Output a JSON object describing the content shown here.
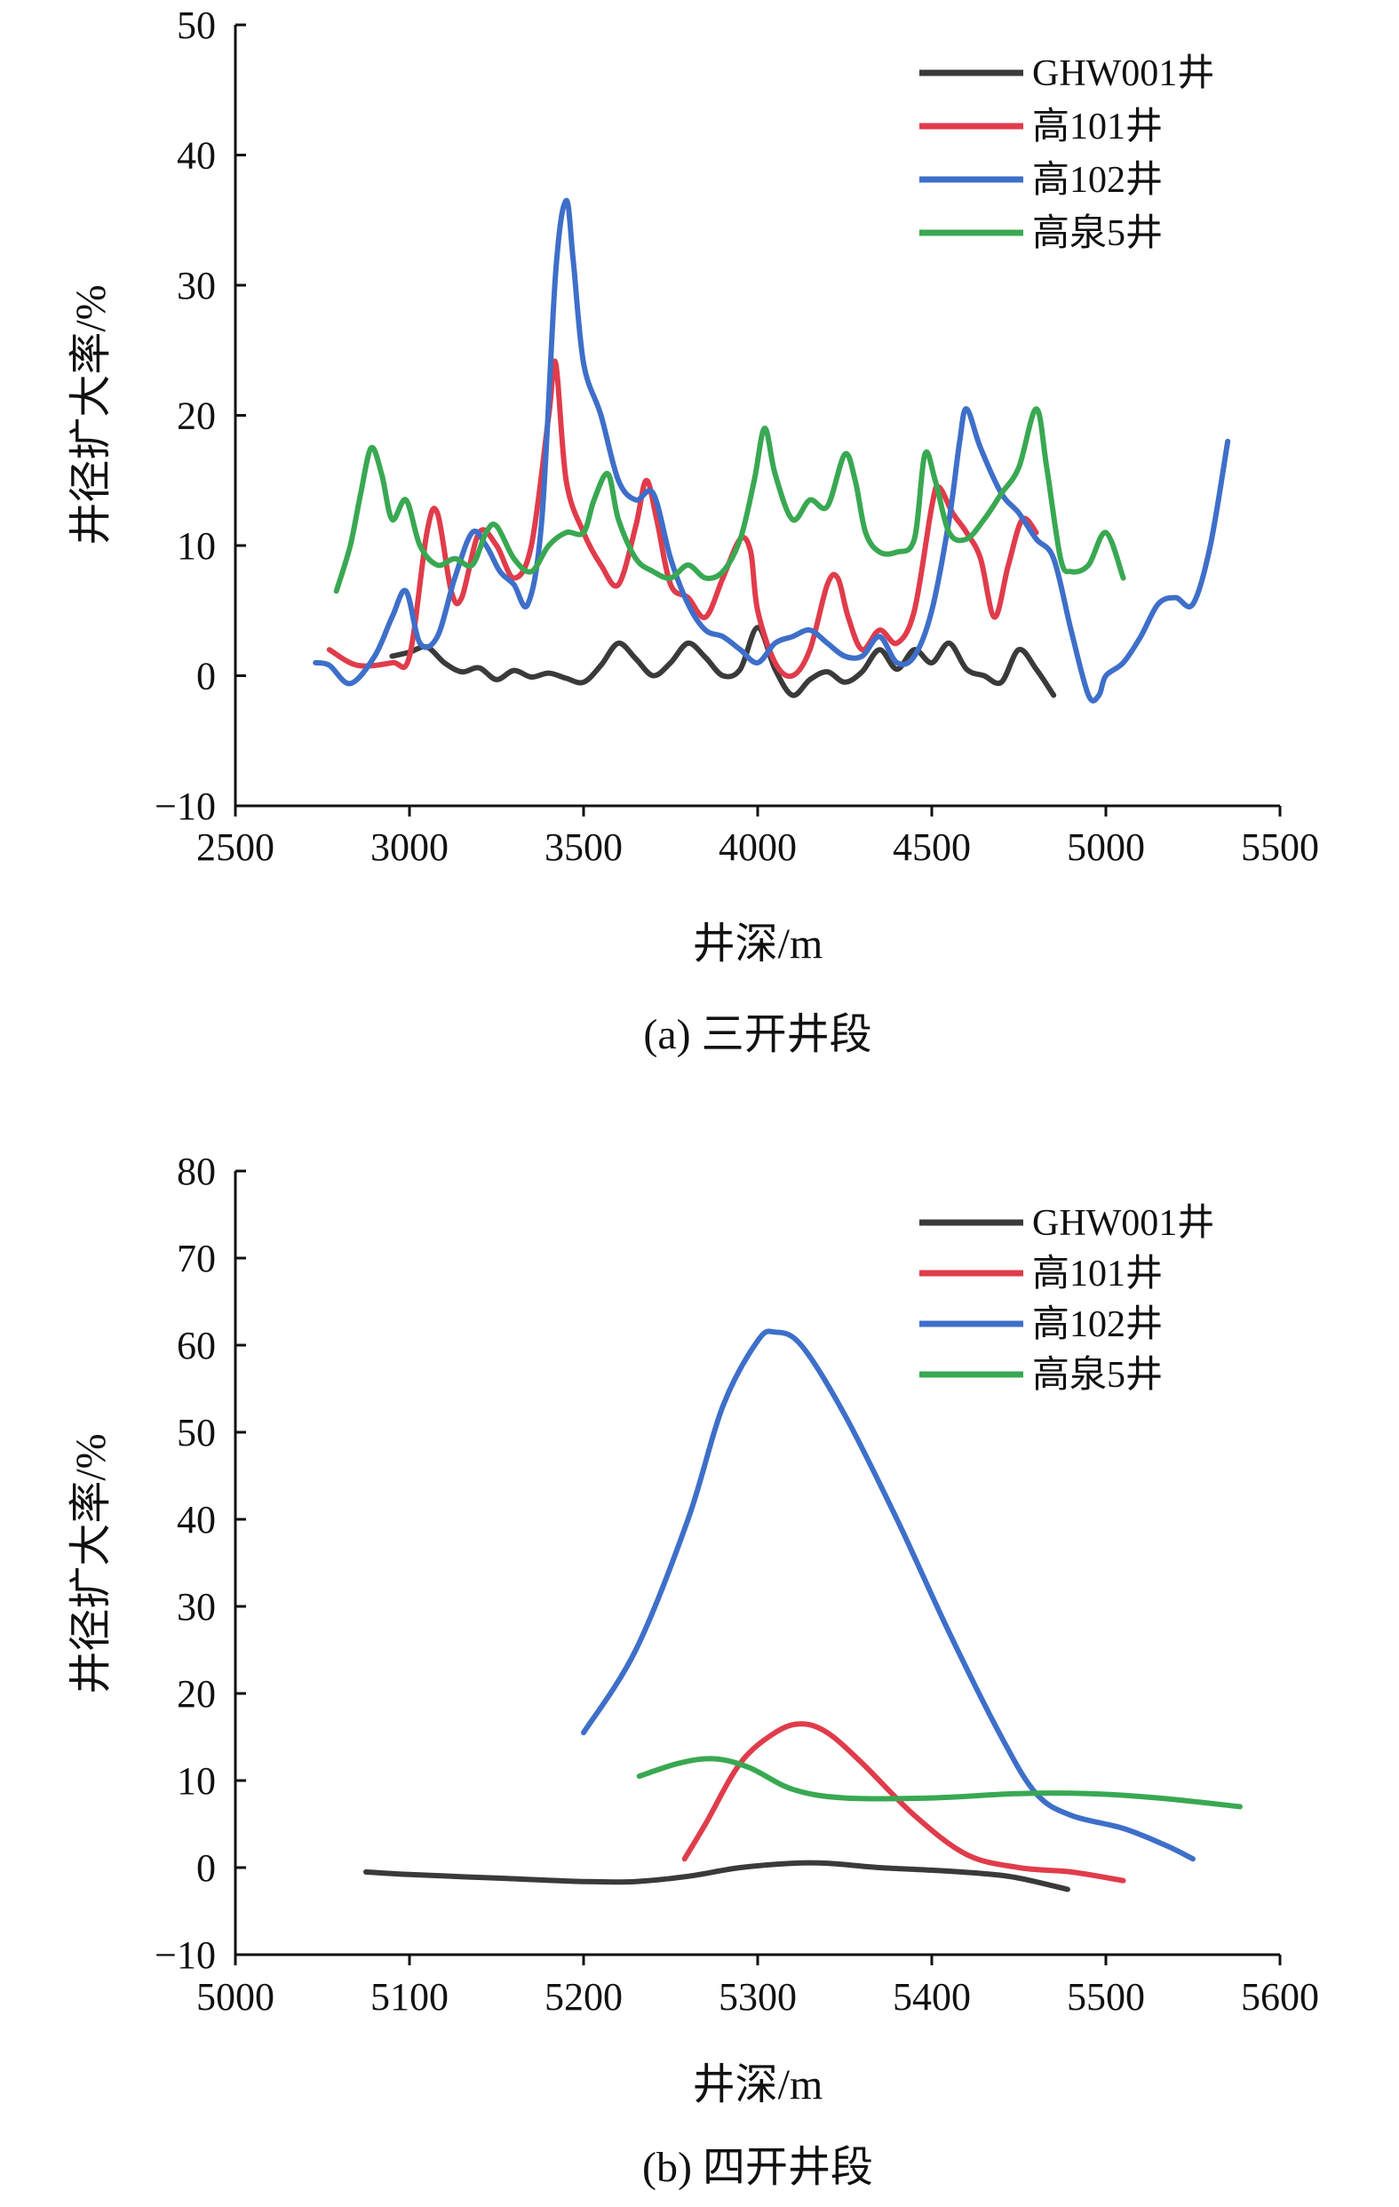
{
  "chart_data": [
    {
      "type": "line",
      "caption": "(a) 三开井段",
      "xlabel": "井深/m",
      "ylabel": "井径扩大率/%",
      "xlim": [
        2500,
        5500
      ],
      "ylim": [
        -10,
        50
      ],
      "xticks": [
        "2500",
        "3000",
        "3500",
        "4000",
        "4500",
        "5000",
        "5500"
      ],
      "yticks": [
        "−10",
        "0",
        "10",
        "20",
        "30",
        "40",
        "50"
      ],
      "legend_position": "top-right",
      "series": [
        {
          "name": "GHW001井",
          "color": "#3a3a3a",
          "x": [
            2950,
            3000,
            3050,
            3100,
            3150,
            3200,
            3250,
            3300,
            3350,
            3400,
            3450,
            3500,
            3550,
            3600,
            3650,
            3700,
            3750,
            3800,
            3850,
            3900,
            3950,
            4000,
            4050,
            4100,
            4150,
            4200,
            4250,
            4300,
            4350,
            4400,
            4450,
            4500,
            4550,
            4600,
            4650,
            4700,
            4750,
            4800,
            4850
          ],
          "y": [
            1.5,
            1.8,
            2.2,
            1.0,
            0.3,
            0.6,
            -0.3,
            0.4,
            -0.1,
            0.2,
            -0.2,
            -0.5,
            0.8,
            2.5,
            1.3,
            0.0,
            1.0,
            2.5,
            1.4,
            0.0,
            0.5,
            3.7,
            0.5,
            -1.5,
            -0.3,
            0.3,
            -0.5,
            0.3,
            2.0,
            0.5,
            2.0,
            1.0,
            2.5,
            0.5,
            0.0,
            -0.5,
            2.0,
            0.5,
            -1.5
          ]
        },
        {
          "name": "高101井",
          "color": "#e03c4b",
          "x": [
            2770,
            2850,
            2950,
            3000,
            3050,
            3080,
            3120,
            3150,
            3200,
            3250,
            3300,
            3350,
            3400,
            3420,
            3450,
            3500,
            3550,
            3600,
            3650,
            3680,
            3710,
            3750,
            3800,
            3850,
            3900,
            3950,
            3980,
            4000,
            4050,
            4100,
            4150,
            4200,
            4230,
            4260,
            4300,
            4350,
            4400,
            4450,
            4500,
            4520,
            4560,
            4600,
            4640,
            4680,
            4720,
            4760,
            4800
          ],
          "y": [
            2.0,
            0.8,
            1.0,
            1.5,
            11.0,
            12.5,
            6.5,
            6.0,
            11.0,
            10.0,
            7.5,
            10.0,
            20.0,
            24.0,
            15.0,
            11.0,
            8.5,
            7.0,
            11.5,
            15.0,
            12.0,
            7.0,
            6.0,
            4.5,
            7.5,
            10.5,
            9.5,
            5.0,
            1.0,
            0.0,
            2.0,
            7.0,
            7.5,
            4.5,
            2.0,
            3.5,
            2.5,
            5.0,
            13.0,
            14.5,
            12.5,
            11.0,
            9.0,
            4.5,
            8.5,
            12.0,
            11.0
          ]
        },
        {
          "name": "高102井",
          "color": "#3e6fc9",
          "x": [
            2730,
            2770,
            2830,
            2900,
            2950,
            2990,
            3030,
            3080,
            3130,
            3180,
            3220,
            3260,
            3300,
            3340,
            3380,
            3420,
            3450,
            3470,
            3500,
            3550,
            3600,
            3650,
            3700,
            3750,
            3800,
            3850,
            3900,
            3950,
            4000,
            4050,
            4100,
            4150,
            4200,
            4250,
            4300,
            4350,
            4400,
            4450,
            4500,
            4550,
            4580,
            4600,
            4640,
            4700,
            4750,
            4800,
            4850,
            4900,
            4950,
            4980,
            5000,
            5050,
            5100,
            5150,
            5200,
            5250,
            5300,
            5350
          ],
          "y": [
            1.0,
            0.8,
            -0.6,
            1.5,
            4.5,
            6.5,
            2.5,
            3.0,
            7.5,
            11.0,
            10.0,
            8.0,
            7.0,
            5.5,
            12.0,
            31.0,
            36.5,
            32.0,
            24.0,
            20.0,
            15.0,
            13.5,
            14.0,
            9.0,
            5.5,
            3.5,
            3.0,
            2.0,
            1.0,
            2.5,
            3.0,
            3.5,
            2.5,
            1.5,
            1.5,
            3.0,
            1.0,
            1.5,
            5.0,
            12.0,
            18.0,
            20.5,
            17.5,
            14.0,
            12.5,
            10.5,
            9.0,
            3.5,
            -1.5,
            -1.5,
            0.0,
            1.0,
            3.0,
            5.5,
            6.0,
            5.5,
            10.0,
            18.0
          ]
        },
        {
          "name": "高泉5井",
          "color": "#39a852",
          "x": [
            2790,
            2830,
            2860,
            2890,
            2920,
            2950,
            2990,
            3030,
            3080,
            3130,
            3180,
            3220,
            3250,
            3300,
            3350,
            3400,
            3450,
            3500,
            3530,
            3570,
            3600,
            3650,
            3700,
            3750,
            3800,
            3850,
            3900,
            3950,
            3990,
            4020,
            4050,
            4100,
            4150,
            4200,
            4250,
            4280,
            4310,
            4350,
            4400,
            4450,
            4480,
            4510,
            4550,
            4600,
            4650,
            4700,
            4750,
            4800,
            4830,
            4870,
            4900,
            4950,
            5000,
            5050
          ],
          "y": [
            6.5,
            10.0,
            14.0,
            17.5,
            15.5,
            12.0,
            13.5,
            10.0,
            8.5,
            9.0,
            8.5,
            11.0,
            11.5,
            9.0,
            8.0,
            10.0,
            11.0,
            11.0,
            13.5,
            15.5,
            12.0,
            9.0,
            8.0,
            7.5,
            8.5,
            7.5,
            8.0,
            10.5,
            15.0,
            19.0,
            15.5,
            12.0,
            13.5,
            13.0,
            17.0,
            15.0,
            11.0,
            9.5,
            9.5,
            10.5,
            17.0,
            15.0,
            11.0,
            10.5,
            12.0,
            14.0,
            16.0,
            20.5,
            16.0,
            9.0,
            8.0,
            8.5,
            11.0,
            7.5
          ]
        }
      ]
    },
    {
      "type": "line",
      "caption": "(b) 四开井段",
      "xlabel": "井深/m",
      "ylabel": "井径扩大率/%",
      "xlim": [
        5000,
        5600
      ],
      "ylim": [
        -10,
        80
      ],
      "xticks": [
        "5000",
        "5100",
        "5200",
        "5300",
        "5400",
        "5500",
        "5600"
      ],
      "yticks": [
        "−10",
        "0",
        "10",
        "20",
        "30",
        "40",
        "50",
        "60",
        "70",
        "80"
      ],
      "legend_position": "top-right",
      "series": [
        {
          "name": "GHW001井",
          "color": "#3a3a3a",
          "x": [
            5075,
            5100,
            5150,
            5200,
            5230,
            5260,
            5290,
            5320,
            5340,
            5370,
            5400,
            5430,
            5450,
            5478
          ],
          "y": [
            -0.5,
            -0.8,
            -1.2,
            -1.6,
            -1.6,
            -1.0,
            0.0,
            0.5,
            0.5,
            0.0,
            -0.3,
            -0.7,
            -1.2,
            -2.5
          ]
        },
        {
          "name": "高101井",
          "color": "#e03c4b",
          "x": [
            5258,
            5270,
            5290,
            5310,
            5325,
            5340,
            5360,
            5390,
            5420,
            5450,
            5480,
            5510
          ],
          "y": [
            1.0,
            5.0,
            12.0,
            15.5,
            16.5,
            15.5,
            12.0,
            6.0,
            1.5,
            0.0,
            -0.5,
            -1.5
          ]
        },
        {
          "name": "高102井",
          "color": "#3e6fc9",
          "x": [
            5200,
            5230,
            5260,
            5280,
            5300,
            5310,
            5325,
            5350,
            5380,
            5410,
            5440,
            5460,
            5480,
            5510,
            5535,
            5550
          ],
          "y": [
            15.5,
            25.0,
            40.0,
            53.0,
            60.5,
            61.5,
            60.0,
            52.0,
            40.0,
            27.0,
            15.0,
            8.5,
            6.0,
            4.5,
            2.5,
            1.0
          ]
        },
        {
          "name": "高泉5井",
          "color": "#39a852",
          "x": [
            5232,
            5255,
            5275,
            5295,
            5320,
            5350,
            5400,
            5450,
            5490,
            5530,
            5577
          ],
          "y": [
            10.5,
            12.0,
            12.5,
            11.5,
            9.0,
            8.0,
            8.0,
            8.5,
            8.5,
            8.0,
            7.0
          ]
        }
      ]
    }
  ]
}
